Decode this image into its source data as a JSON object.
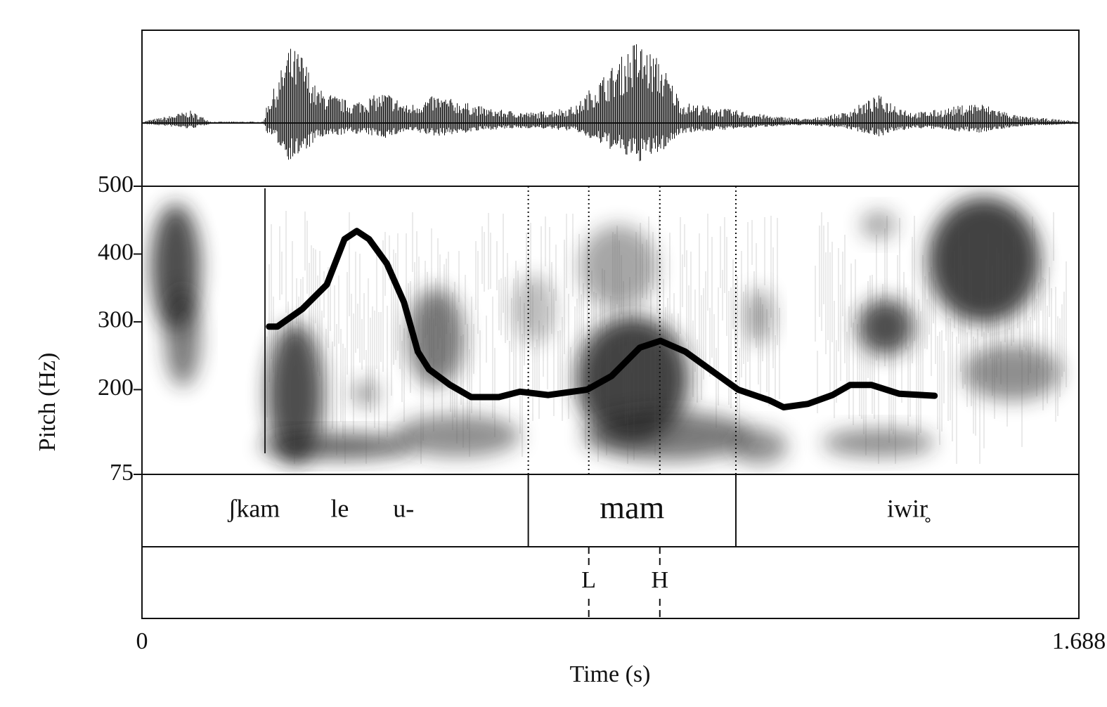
{
  "chart_data": {
    "type": "line",
    "ylabel": "Pitch (Hz)",
    "xlabel": "Time (s)",
    "xlim": [
      0,
      1.688
    ],
    "xticks": [
      0,
      1.688
    ],
    "ylim": [
      75,
      500
    ],
    "yticks": [
      75,
      200,
      300,
      400,
      500
    ],
    "color": "#000000",
    "x": [
      0.229,
      0.244,
      0.289,
      0.333,
      0.365,
      0.387,
      0.409,
      0.441,
      0.472,
      0.497,
      0.517,
      0.555,
      0.593,
      0.643,
      0.681,
      0.732,
      0.802,
      0.846,
      0.897,
      0.934,
      0.979,
      1.023,
      1.074,
      1.131,
      1.156,
      1.2,
      1.244,
      1.276,
      1.314,
      1.364,
      1.428
    ],
    "values": [
      293,
      293,
      319,
      355,
      422,
      434,
      422,
      386,
      329,
      256,
      230,
      207,
      189,
      189,
      197,
      192,
      200,
      220,
      262,
      272,
      256,
      230,
      200,
      184,
      174,
      179,
      192,
      207,
      207,
      194,
      191
    ],
    "tier1": {
      "boundaries": [
        0.696,
        1.07
      ],
      "labels": [
        "ʃkam        le       u-",
        "mam",
        "iwir̥"
      ]
    },
    "tier2": {
      "points": [
        0.805,
        0.933
      ],
      "labels": [
        "L",
        "H"
      ]
    }
  }
}
